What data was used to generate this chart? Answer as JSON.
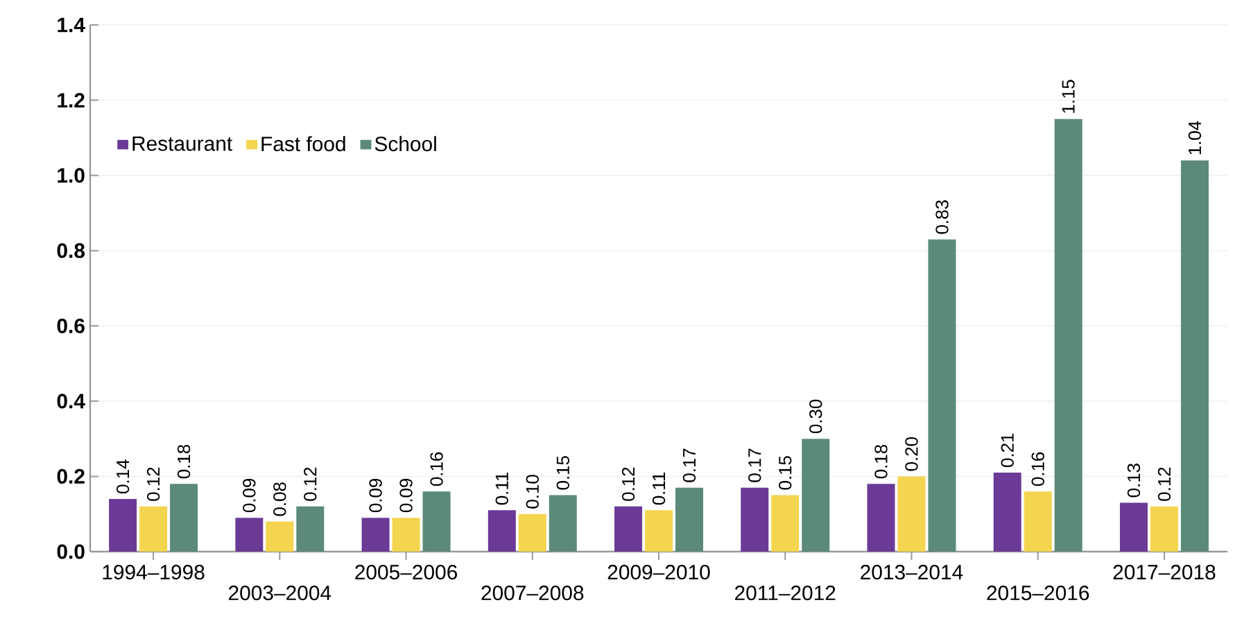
{
  "chart_data": {
    "type": "bar",
    "categories": [
      "1994–1998",
      "2003–2004",
      "2005–2006",
      "2007–2008",
      "2009–2010",
      "2011–2012",
      "2013–2014",
      "2015–2016",
      "2017–2018"
    ],
    "series": [
      {
        "name": "Restaurant",
        "color": "#6b3a97",
        "values": [
          0.14,
          0.09,
          0.09,
          0.11,
          0.12,
          0.17,
          0.18,
          0.21,
          0.13
        ],
        "value_labels": [
          "0.14",
          "0.09",
          "0.09",
          "0.11",
          "0.12",
          "0.17",
          "0.18",
          "0.21",
          "0.13"
        ]
      },
      {
        "name": "Fast food",
        "color": "#f3d54f",
        "values": [
          0.12,
          0.08,
          0.09,
          0.1,
          0.11,
          0.15,
          0.2,
          0.16,
          0.12
        ],
        "value_labels": [
          "0.12",
          "0.08",
          "0.09",
          "0.10",
          "0.11",
          "0.15",
          "0.20",
          "0.16",
          "0.12"
        ]
      },
      {
        "name": "School",
        "color": "#5b8a78",
        "values": [
          0.18,
          0.12,
          0.16,
          0.15,
          0.17,
          0.3,
          0.83,
          1.15,
          1.04
        ],
        "value_labels": [
          "0.18",
          "0.12",
          "0.16",
          "0.15",
          "0.17",
          "0.30",
          "0.83",
          "1.15",
          "1.04"
        ]
      }
    ],
    "ylim": [
      0,
      1.4
    ],
    "yticks": [
      {
        "value": 0,
        "label": "0.0"
      },
      {
        "value": 0.2,
        "label": "0.2"
      },
      {
        "value": 0.4,
        "label": "0.4"
      },
      {
        "value": 0.6,
        "label": "0.6"
      },
      {
        "value": 0.8,
        "label": "0.8"
      },
      {
        "value": 1.0,
        "label": "1.0"
      },
      {
        "value": 1.2,
        "label": "1.2"
      },
      {
        "value": 1.4,
        "label": "1.4"
      }
    ],
    "grid": "y",
    "legend": "top left"
  }
}
